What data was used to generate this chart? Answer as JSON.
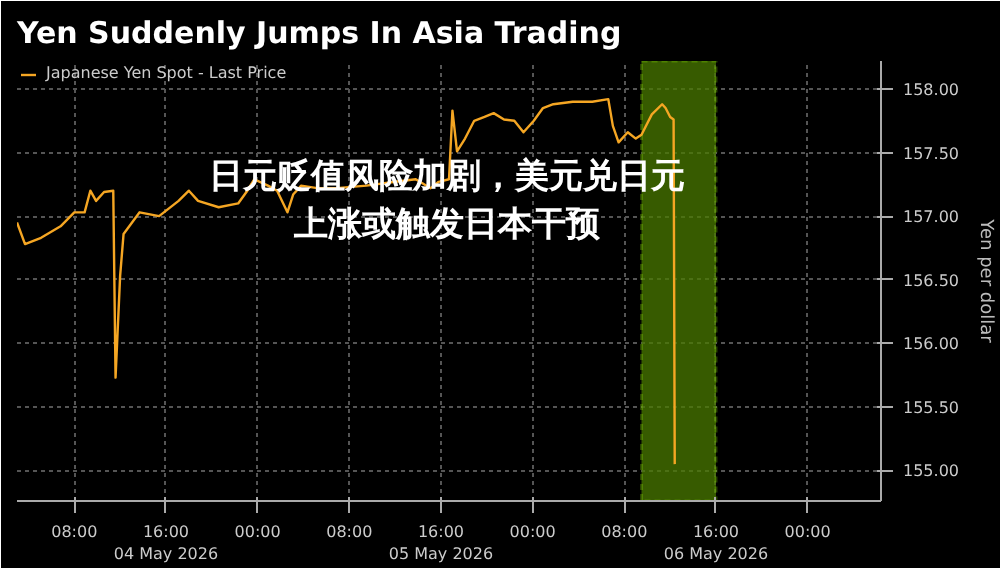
{
  "chart_data": {
    "type": "line",
    "title": "Yen Suddenly Jumps In Asia Trading",
    "ylabel": "Yen per dollar",
    "annotations": [
      "日元贬值风险加剧，美元兑日元上涨或触发日本干预"
    ],
    "x": [
      "2026-05-04T03:00",
      "2026-05-04T03:42",
      "2026-05-04T05:06",
      "2026-05-04T06:48",
      "2026-05-04T08:00",
      "2026-05-04T08:54",
      "2026-05-04T09:24",
      "2026-05-04T09:54",
      "2026-05-04T10:36",
      "2026-05-04T11:24",
      "2026-05-04T11:36",
      "2026-05-04T12:00",
      "2026-05-04T12:18",
      "2026-05-04T13:42",
      "2026-05-04T15:24",
      "2026-05-04T17:06",
      "2026-05-04T18:00",
      "2026-05-04T18:48",
      "2026-05-04T20:36",
      "2026-05-04T22:18",
      "2026-05-04T23:06",
      "2026-05-04T23:42",
      "2026-05-05T00:54",
      "2026-05-05T01:42",
      "2026-05-05T02:36",
      "2026-05-05T03:06",
      "2026-05-05T03:48",
      "2026-05-05T05:12",
      "2026-05-05T06:54",
      "2026-05-05T09:30",
      "2026-05-05T12:00",
      "2026-05-05T13:48",
      "2026-05-05T15:06",
      "2026-05-05T15:48",
      "2026-05-05T16:42",
      "2026-05-05T17:00",
      "2026-05-05T17:24",
      "2026-05-05T18:06",
      "2026-05-05T18:54",
      "2026-05-05T19:48",
      "2026-05-05T20:36",
      "2026-05-05T21:30",
      "2026-05-05T22:24",
      "2026-05-05T23:12",
      "2026-05-06T00:06",
      "2026-05-06T00:54",
      "2026-05-06T01:48",
      "2026-05-06T03:30",
      "2026-05-06T05:12",
      "2026-05-06T06:36",
      "2026-05-06T07:00",
      "2026-05-06T07:30",
      "2026-05-06T08:18",
      "2026-05-06T09:00",
      "2026-05-06T09:30",
      "2026-05-06T10:24",
      "2026-05-06T11:18",
      "2026-05-06T11:36",
      "2026-05-06T12:00",
      "2026-05-06T12:18",
      "2026-05-06T12:24"
    ],
    "series": [
      {
        "name": "Japanese Yen Spot - Last Price",
        "color": "#f5a623",
        "values": [
          156.95,
          156.78,
          156.83,
          156.92,
          157.03,
          157.03,
          157.2,
          157.12,
          157.19,
          157.2,
          155.73,
          156.53,
          156.86,
          157.03,
          157.0,
          157.12,
          157.2,
          157.12,
          157.07,
          157.1,
          157.2,
          157.29,
          157.24,
          157.2,
          157.03,
          157.17,
          157.24,
          157.22,
          157.22,
          157.24,
          157.27,
          157.29,
          157.22,
          157.27,
          157.29,
          157.83,
          157.51,
          157.61,
          157.75,
          157.78,
          157.81,
          157.76,
          157.75,
          157.66,
          157.75,
          157.85,
          157.88,
          157.9,
          157.9,
          157.92,
          157.71,
          157.58,
          157.66,
          157.61,
          157.64,
          157.8,
          157.88,
          157.85,
          157.78,
          157.76,
          155.05
        ]
      }
    ],
    "xlim": [
      "2026-05-04T03:00",
      "2026-05-07T06:24"
    ],
    "ylim": [
      154.76,
      158.22
    ],
    "xticks": [
      {
        "value": "2026-05-04T08:00",
        "label": "08:00"
      },
      {
        "value": "2026-05-04T16:00",
        "label": "16:00\n04 May 2026"
      },
      {
        "value": "2026-05-05T00:00",
        "label": "00:00"
      },
      {
        "value": "2026-05-05T08:00",
        "label": "08:00"
      },
      {
        "value": "2026-05-05T16:00",
        "label": "16:00\n05 May 2026"
      },
      {
        "value": "2026-05-06T00:00",
        "label": "00:00"
      },
      {
        "value": "2026-05-06T08:00",
        "label": "08:00"
      },
      {
        "value": "2026-05-06T16:00",
        "label": "16:00\n06 May 2026"
      },
      {
        "value": "2026-05-07T00:00",
        "label": "00:00"
      }
    ],
    "yticks": [
      {
        "value": 155,
        "label": "155.00"
      },
      {
        "value": 155.5,
        "label": "155.50"
      },
      {
        "value": 156,
        "label": "156.00"
      },
      {
        "value": 156.5,
        "label": "156.50"
      },
      {
        "value": 157,
        "label": "157.00"
      },
      {
        "value": 157.5,
        "label": "157.50"
      },
      {
        "value": 158,
        "label": "158.00"
      }
    ],
    "bands": [
      {
        "axis": "x",
        "from": "2026-05-06T09:30",
        "to": "2026-05-06T16:00",
        "color": "#4a7a00"
      }
    ],
    "grid": true,
    "legend": "top left"
  }
}
